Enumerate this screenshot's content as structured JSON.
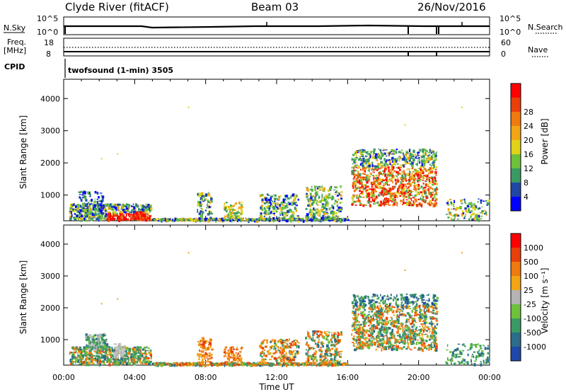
{
  "header": {
    "title": "Clyde River (fitACF)",
    "beam": "Beam 03",
    "date": "26/Nov/2016"
  },
  "status_panels": {
    "nsky_label": "N.Sky",
    "nsky_ticks": [
      "10^5",
      "10^0"
    ],
    "nsearch_label": "N.Search",
    "nsearch_ticks": [
      "10^5",
      "10^0"
    ],
    "freq_label_1": "Freq.",
    "freq_label_2": "[MHz]",
    "freq_ticks": [
      "18",
      "8"
    ],
    "nave_label": "Nave",
    "nave_ticks": [
      "60",
      "0"
    ],
    "cpid_label": "CPID",
    "cpid_text": "twofsound (1-min) 3505"
  },
  "chart_data": [
    {
      "type": "heatmap",
      "title": "",
      "ylabel": "Slant Range [km]",
      "xlabel": "Time UT",
      "ylim": [
        200,
        4600
      ],
      "y_ticks": [
        "1000",
        "2000",
        "3000",
        "4000"
      ],
      "x_ticks": [
        "00:00",
        "04:00",
        "08:00",
        "12:00",
        "16:00",
        "20:00",
        "00:00"
      ],
      "colorbar_label": "Power [dB]",
      "colorbar_ticks": [
        "4",
        "8",
        "12",
        "16",
        "20",
        "24",
        "28"
      ],
      "colorscale": [
        "#0000ff",
        "#2147a6",
        "#3a9a63",
        "#6ec13b",
        "#e0d318",
        "#f3a514",
        "#ef7a0d",
        "#ea3f0b",
        "#ff0000"
      ],
      "series": [
        {
          "x": [
            0.3,
            4.8
          ],
          "y": [
            250,
            800
          ],
          "level": "mixed"
        },
        {
          "x": [
            16.2,
            20.8
          ],
          "y": [
            700,
            2500
          ],
          "level": "strong"
        }
      ]
    },
    {
      "type": "heatmap",
      "title": "",
      "ylabel": "Slant Range [km]",
      "xlabel": "Time UT",
      "ylim": [
        200,
        4600
      ],
      "y_ticks": [
        "1000",
        "2000",
        "3000",
        "4000"
      ],
      "x_ticks": [
        "00:00",
        "04:00",
        "08:00",
        "12:00",
        "16:00",
        "20:00",
        "00:00"
      ],
      "colorbar_label": "Velocity [m s⁻¹]",
      "colorbar_ticks": [
        "1000",
        "500",
        "100",
        "25",
        "-25",
        "-100",
        "-500",
        "-1000"
      ],
      "colorscale": [
        "#1f49a8",
        "#2b6d8a",
        "#3a9a63",
        "#6ec13b",
        "#b4b4b4",
        "#f3a514",
        "#ef7a0d",
        "#ea3f0b",
        "#ff0000"
      ],
      "series": [
        {
          "x": [
            0.3,
            4.8
          ],
          "y": [
            250,
            1200
          ],
          "level": "mixed"
        },
        {
          "x": [
            16.2,
            20.8
          ],
          "y": [
            700,
            2500
          ],
          "level": "mixed"
        }
      ]
    }
  ]
}
